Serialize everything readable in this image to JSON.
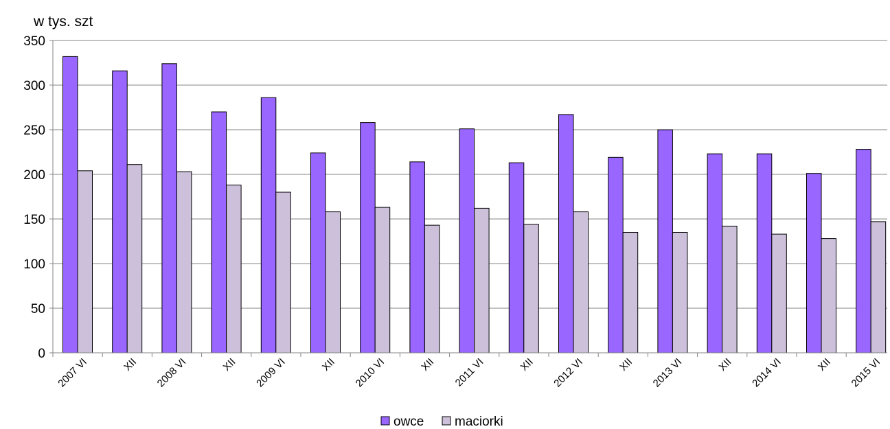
{
  "chart_data": {
    "type": "bar",
    "ylabel": "w tys. szt",
    "ylim": [
      0,
      350
    ],
    "yticks": [
      0,
      50,
      100,
      150,
      200,
      250,
      300,
      350
    ],
    "grid": true,
    "legend_position": "bottom",
    "categories": [
      "2007 VI",
      "XII",
      "2008 VI",
      "XII",
      "2009 VI",
      "XII",
      "2010 VI",
      "XII",
      "2011 VI",
      "XII",
      "2012 VI",
      "XII",
      "2013 VI",
      "XII",
      "2014 VI",
      "XII",
      "2015 VI"
    ],
    "series": [
      {
        "name": "owce",
        "color": "#9966ff",
        "values": [
          332,
          316,
          324,
          270,
          286,
          224,
          258,
          214,
          251,
          213,
          267,
          219,
          250,
          223,
          223,
          201,
          228
        ]
      },
      {
        "name": "maciorki",
        "color": "#ccc0da",
        "values": [
          204,
          211,
          203,
          188,
          180,
          158,
          163,
          143,
          162,
          144,
          158,
          135,
          135,
          142,
          133,
          128,
          147
        ]
      }
    ]
  }
}
